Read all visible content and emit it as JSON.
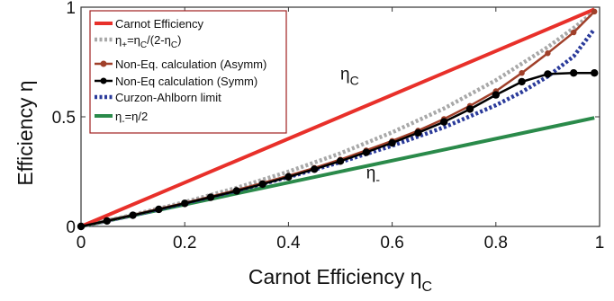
{
  "chart_data": {
    "type": "line",
    "xlabel": "Carnot Efficiency η",
    "xlabel_sub": "C",
    "ylabel": "Efficiency η",
    "xlim": [
      0,
      1
    ],
    "ylim": [
      0,
      1
    ],
    "xticks": [
      "0",
      "0.2",
      "0.4",
      "0.6",
      "0.8",
      "1"
    ],
    "yticks": [
      "0",
      "0.5",
      "1"
    ],
    "xtick_values": [
      0,
      0.2,
      0.4,
      0.6,
      0.8,
      1
    ],
    "ytick_values": [
      0,
      0.5,
      1
    ],
    "grid": false,
    "legend_position": "top-left",
    "annotations": [
      {
        "text": "η",
        "sub": "C",
        "x": 0.5,
        "y": 0.67
      },
      {
        "text": "η",
        "sub": "-",
        "x": 0.55,
        "y": 0.22
      }
    ],
    "series": [
      {
        "name": "Carnot Efficiency",
        "style": "solid",
        "color": "#e8302a",
        "x": [
          0,
          0.2,
          0.4,
          0.6,
          0.8,
          0.99
        ],
        "y": [
          0,
          0.2,
          0.4,
          0.6,
          0.8,
          0.99
        ]
      },
      {
        "name_parts": [
          "η",
          "+",
          "=η",
          "C",
          "/(2-η",
          "C",
          ")"
        ],
        "style": "dotted",
        "color": "#a8a8a8",
        "x": [
          0,
          0.1,
          0.2,
          0.3,
          0.4,
          0.5,
          0.6,
          0.7,
          0.8,
          0.9,
          0.95,
          0.99
        ],
        "y": [
          0,
          0.053,
          0.111,
          0.176,
          0.25,
          0.333,
          0.429,
          0.538,
          0.667,
          0.818,
          0.905,
          0.98
        ]
      },
      {
        "name": "Non-Eq. calculation (Asymm)",
        "style": "line-markers",
        "color": "#a0402a",
        "x": [
          0,
          0.05,
          0.1,
          0.15,
          0.2,
          0.25,
          0.3,
          0.35,
          0.4,
          0.45,
          0.5,
          0.55,
          0.6,
          0.65,
          0.7,
          0.75,
          0.8,
          0.85,
          0.9,
          0.95,
          0.99
        ],
        "y": [
          0,
          0.026,
          0.052,
          0.08,
          0.107,
          0.136,
          0.166,
          0.198,
          0.231,
          0.267,
          0.305,
          0.347,
          0.39,
          0.437,
          0.49,
          0.55,
          0.617,
          0.7,
          0.79,
          0.885,
          0.98
        ]
      },
      {
        "name": "Non-Eq calculation (Symm)",
        "style": "line-markers",
        "color": "#000000",
        "x": [
          0,
          0.05,
          0.1,
          0.15,
          0.2,
          0.25,
          0.3,
          0.35,
          0.4,
          0.45,
          0.5,
          0.55,
          0.6,
          0.65,
          0.7,
          0.75,
          0.8,
          0.85,
          0.9,
          0.95,
          0.99
        ],
        "y": [
          0,
          0.025,
          0.051,
          0.078,
          0.105,
          0.133,
          0.162,
          0.193,
          0.226,
          0.261,
          0.298,
          0.338,
          0.381,
          0.427,
          0.477,
          0.535,
          0.6,
          0.66,
          0.695,
          0.7,
          0.7
        ]
      },
      {
        "name": "Curzon-Ahlborn limit",
        "style": "dotted",
        "color": "#2a3a9a",
        "x": [
          0,
          0.1,
          0.2,
          0.3,
          0.4,
          0.5,
          0.6,
          0.7,
          0.8,
          0.85,
          0.9,
          0.95,
          0.99
        ],
        "y": [
          0,
          0.051,
          0.106,
          0.163,
          0.225,
          0.293,
          0.368,
          0.452,
          0.553,
          0.613,
          0.684,
          0.776,
          0.9
        ]
      },
      {
        "name_parts": [
          "η",
          "-",
          "=η/2"
        ],
        "style": "solid",
        "color": "#2a8a4a",
        "x": [
          0,
          0.99
        ],
        "y": [
          0,
          0.495
        ]
      }
    ]
  }
}
